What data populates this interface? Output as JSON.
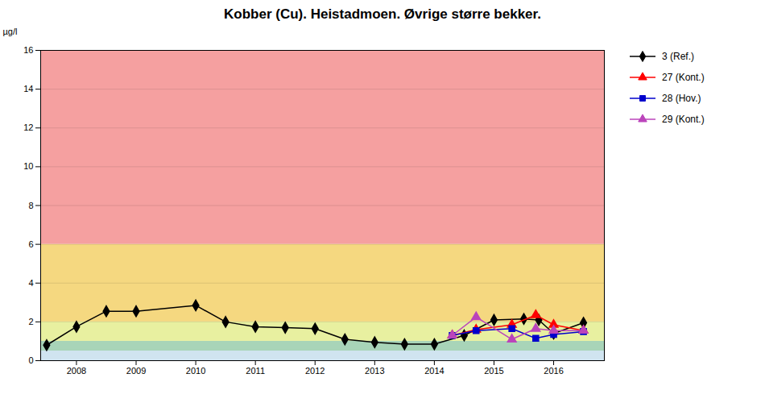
{
  "chart_data": {
    "type": "line",
    "title": "Kobber (Cu). Heistadmoen. Øvrige større bekker.",
    "ylabel": "µg/l",
    "xlim": [
      2007.4,
      2016.85
    ],
    "ylim": [
      0,
      16
    ],
    "xticks": [
      2008,
      2009,
      2010,
      2011,
      2012,
      2013,
      2014,
      2015,
      2016
    ],
    "yticks": [
      0,
      2,
      4,
      6,
      8,
      10,
      12,
      14,
      16
    ],
    "grid": true,
    "legend": "right",
    "bands": [
      {
        "ymin": 0,
        "ymax": 0.5,
        "color": "#d0e4f0"
      },
      {
        "ymin": 0.5,
        "ymax": 1.0,
        "color": "#a8d4b8"
      },
      {
        "ymin": 1.0,
        "ymax": 2.0,
        "color": "#e8f0a0"
      },
      {
        "ymin": 2.0,
        "ymax": 6.0,
        "color": "#f5d880"
      },
      {
        "ymin": 6.0,
        "ymax": 16.0,
        "color": "#f5a0a0"
      }
    ],
    "series": [
      {
        "name": "3 (Ref.)",
        "color": "#000000",
        "marker": "diamond",
        "x": [
          2007.5,
          2008.0,
          2008.5,
          2009.0,
          2010.0,
          2010.5,
          2011.0,
          2011.5,
          2012.0,
          2012.5,
          2013.0,
          2013.5,
          2014.0,
          2014.5,
          2015.0,
          2015.5,
          2015.75,
          2016.0,
          2016.5
        ],
        "values": [
          0.8,
          1.75,
          2.55,
          2.55,
          2.85,
          2.0,
          1.75,
          1.7,
          1.65,
          1.1,
          0.95,
          0.85,
          0.85,
          1.3,
          2.1,
          2.15,
          2.1,
          1.4,
          1.95
        ]
      },
      {
        "name": "27 (Kont.)",
        "color": "#ff0000",
        "marker": "triangle",
        "x": [
          2014.3,
          2014.7,
          2015.3,
          2015.7,
          2016.0,
          2016.5
        ],
        "values": [
          1.3,
          1.6,
          1.85,
          2.35,
          1.85,
          1.55
        ]
      },
      {
        "name": "28 (Hov.)",
        "color": "#0000cc",
        "marker": "square",
        "x": [
          2014.3,
          2014.7,
          2015.3,
          2015.7,
          2016.0,
          2016.5
        ],
        "values": [
          1.3,
          1.55,
          1.65,
          1.15,
          1.35,
          1.5
        ]
      },
      {
        "name": "29 (Kont.)",
        "color": "#bb44bb",
        "marker": "triangle",
        "x": [
          2014.3,
          2014.7,
          2015.3,
          2015.7,
          2016.0,
          2016.5
        ],
        "values": [
          1.3,
          2.25,
          1.1,
          1.65,
          1.55,
          1.55
        ]
      }
    ]
  }
}
